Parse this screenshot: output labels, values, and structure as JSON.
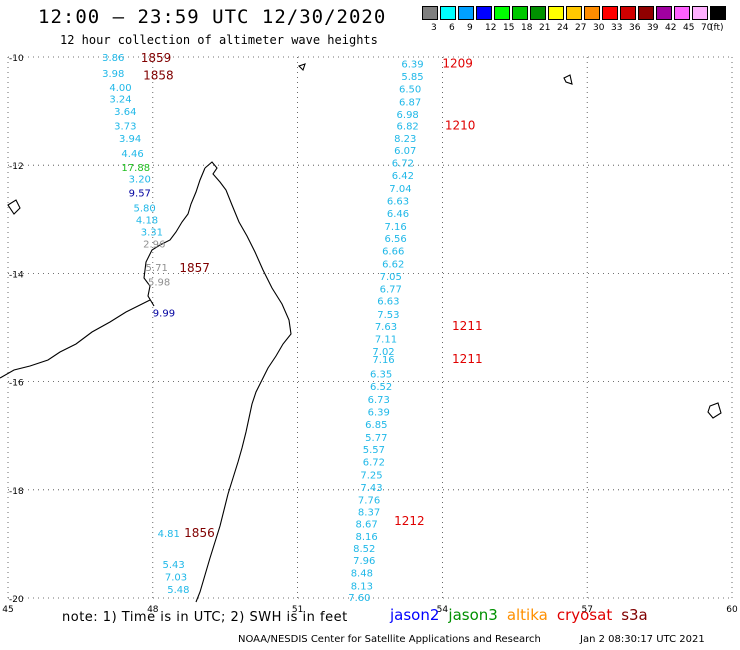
{
  "header": {
    "title": "12:00 – 23:59 UTC 12/30/2020",
    "subtitle": "12 hour collection of altimeter wave heights"
  },
  "legend": {
    "unit": "(ft)",
    "bins": [
      {
        "label": "3",
        "color": "#7f7f7f"
      },
      {
        "label": "6",
        "color": "#00ffff"
      },
      {
        "label": "9",
        "color": "#00a0ff"
      },
      {
        "label": "12",
        "color": "#0000ff"
      },
      {
        "label": "15",
        "color": "#00ff00"
      },
      {
        "label": "18",
        "color": "#00c800"
      },
      {
        "label": "21",
        "color": "#009000"
      },
      {
        "label": "24",
        "color": "#ffff00"
      },
      {
        "label": "27",
        "color": "#ffc800"
      },
      {
        "label": "30",
        "color": "#ff8c00"
      },
      {
        "label": "33",
        "color": "#ff0000"
      },
      {
        "label": "36",
        "color": "#d00000"
      },
      {
        "label": "39",
        "color": "#900000"
      },
      {
        "label": "42",
        "color": "#a000a0"
      },
      {
        "label": "45",
        "color": "#ff60ff"
      },
      {
        "label": "70",
        "color": "#ffb0ff"
      },
      {
        "label": "",
        "color": "#000000"
      }
    ]
  },
  "axes": {
    "lon_ticks": [
      45,
      48,
      51,
      54,
      57,
      60
    ],
    "lat_ticks": [
      -10,
      -12,
      -14,
      -16,
      -18,
      -20
    ],
    "lon_range": [
      45,
      60
    ],
    "lat_range": [
      -20,
      -10
    ]
  },
  "colors": {
    "cyan": "#20b8e8",
    "green": "#20c020",
    "navy": "#0000a0",
    "gray": "#909090",
    "maroon": "#800000",
    "red": "#e00000"
  },
  "time_labels": [
    {
      "text": "1859",
      "lon": 47.75,
      "lat": -10.02,
      "color": "maroon"
    },
    {
      "text": "1858",
      "lon": 47.8,
      "lat": -10.34,
      "color": "maroon"
    },
    {
      "text": "1857",
      "lon": 48.55,
      "lat": -13.9,
      "color": "maroon"
    },
    {
      "text": "1856",
      "lon": 48.65,
      "lat": -18.8,
      "color": "maroon"
    },
    {
      "text": "1209",
      "lon": 54.0,
      "lat": -10.12,
      "color": "red"
    },
    {
      "text": "1210",
      "lon": 54.05,
      "lat": -11.27,
      "color": "red"
    },
    {
      "text": "1211",
      "lon": 54.2,
      "lat": -14.97,
      "color": "red"
    },
    {
      "text": "1211",
      "lon": 54.2,
      "lat": -15.58,
      "color": "red"
    },
    {
      "text": "1212",
      "lon": 53.0,
      "lat": -18.58,
      "color": "red"
    }
  ],
  "track_west": [
    {
      "v": "3.86",
      "lon": 46.95,
      "lat": -10.0,
      "color": "cyan"
    },
    {
      "v": "3.98",
      "lon": 46.95,
      "lat": -10.3,
      "color": "cyan"
    },
    {
      "v": "4.00",
      "lon": 47.1,
      "lat": -10.55,
      "color": "cyan"
    },
    {
      "v": "3.24",
      "lon": 47.1,
      "lat": -10.77,
      "color": "cyan"
    },
    {
      "v": "3.64",
      "lon": 47.2,
      "lat": -11.0,
      "color": "cyan"
    },
    {
      "v": "3.73",
      "lon": 47.2,
      "lat": -11.27,
      "color": "cyan"
    },
    {
      "v": "3.94",
      "lon": 47.3,
      "lat": -11.5,
      "color": "cyan"
    },
    {
      "v": "4.46",
      "lon": 47.35,
      "lat": -11.77,
      "color": "cyan"
    },
    {
      "v": "17.88",
      "lon": 47.35,
      "lat": -12.03,
      "color": "green"
    },
    {
      "v": "3.20",
      "lon": 47.5,
      "lat": -12.25,
      "color": "cyan"
    },
    {
      "v": "9.57",
      "lon": 47.5,
      "lat": -12.5,
      "color": "navy"
    },
    {
      "v": "5.80",
      "lon": 47.6,
      "lat": -12.78,
      "color": "cyan"
    },
    {
      "v": "4.18",
      "lon": 47.65,
      "lat": -13.0,
      "color": "cyan"
    },
    {
      "v": "3.31",
      "lon": 47.75,
      "lat": -13.23,
      "color": "cyan"
    },
    {
      "v": "2.96",
      "lon": 47.8,
      "lat": -13.45,
      "color": "gray"
    },
    {
      "v": "5.71",
      "lon": 47.85,
      "lat": -13.88,
      "color": "gray"
    },
    {
      "v": "5.98",
      "lon": 47.9,
      "lat": -14.15,
      "color": "gray"
    },
    {
      "v": "9.99",
      "lon": 48.0,
      "lat": -14.72,
      "color": "navy"
    },
    {
      "v": "4.81",
      "lon": 48.1,
      "lat": -18.8,
      "color": "cyan"
    },
    {
      "v": "5.43",
      "lon": 48.2,
      "lat": -19.37,
      "color": "cyan"
    },
    {
      "v": "7.03",
      "lon": 48.25,
      "lat": -19.6,
      "color": "cyan"
    },
    {
      "v": "5.48",
      "lon": 48.3,
      "lat": -19.83,
      "color": "cyan"
    }
  ],
  "track_east": [
    {
      "v": "6.39",
      "lon": 53.15,
      "lat": -10.12
    },
    {
      "v": "5.85",
      "lon": 53.15,
      "lat": -10.35
    },
    {
      "v": "6.50",
      "lon": 53.1,
      "lat": -10.58
    },
    {
      "v": "6.87",
      "lon": 53.1,
      "lat": -10.82
    },
    {
      "v": "6.98",
      "lon": 53.05,
      "lat": -11.05
    },
    {
      "v": "6.82",
      "lon": 53.05,
      "lat": -11.27
    },
    {
      "v": "8.23",
      "lon": 53.0,
      "lat": -11.5
    },
    {
      "v": "6.07",
      "lon": 53.0,
      "lat": -11.72
    },
    {
      "v": "6.72",
      "lon": 52.95,
      "lat": -11.95
    },
    {
      "v": "6.42",
      "lon": 52.95,
      "lat": -12.18
    },
    {
      "v": "7.04",
      "lon": 52.9,
      "lat": -12.42
    },
    {
      "v": "6.63",
      "lon": 52.85,
      "lat": -12.65
    },
    {
      "v": "6.46",
      "lon": 52.85,
      "lat": -12.88
    },
    {
      "v": "7.16",
      "lon": 52.8,
      "lat": -13.12
    },
    {
      "v": "6.56",
      "lon": 52.8,
      "lat": -13.35
    },
    {
      "v": "6.66",
      "lon": 52.75,
      "lat": -13.58
    },
    {
      "v": "6.62",
      "lon": 52.75,
      "lat": -13.82
    },
    {
      "v": "7.05",
      "lon": 52.7,
      "lat": -14.05
    },
    {
      "v": "6.77",
      "lon": 52.7,
      "lat": -14.28
    },
    {
      "v": "6.63",
      "lon": 52.65,
      "lat": -14.5
    },
    {
      "v": "7.53",
      "lon": 52.65,
      "lat": -14.75
    },
    {
      "v": "7.63",
      "lon": 52.6,
      "lat": -14.97
    },
    {
      "v": "7.11",
      "lon": 52.6,
      "lat": -15.2
    },
    {
      "v": "7.02",
      "lon": 52.55,
      "lat": -15.43
    },
    {
      "v": "7.16",
      "lon": 52.55,
      "lat": -15.58
    },
    {
      "v": "6.35",
      "lon": 52.5,
      "lat": -15.85
    },
    {
      "v": "6.52",
      "lon": 52.5,
      "lat": -16.08
    },
    {
      "v": "6.73",
      "lon": 52.45,
      "lat": -16.32
    },
    {
      "v": "6.39",
      "lon": 52.45,
      "lat": -16.55
    },
    {
      "v": "6.85",
      "lon": 52.4,
      "lat": -16.78
    },
    {
      "v": "5.77",
      "lon": 52.4,
      "lat": -17.02
    },
    {
      "v": "5.57",
      "lon": 52.35,
      "lat": -17.25
    },
    {
      "v": "6.72",
      "lon": 52.35,
      "lat": -17.48
    },
    {
      "v": "7.25",
      "lon": 52.3,
      "lat": -17.72
    },
    {
      "v": "7.43",
      "lon": 52.3,
      "lat": -17.95
    },
    {
      "v": "7.76",
      "lon": 52.25,
      "lat": -18.18
    },
    {
      "v": "8.37",
      "lon": 52.25,
      "lat": -18.4
    },
    {
      "v": "8.67",
      "lon": 52.2,
      "lat": -18.62
    },
    {
      "v": "8.16",
      "lon": 52.2,
      "lat": -18.85
    },
    {
      "v": "8.52",
      "lon": 52.15,
      "lat": -19.08
    },
    {
      "v": "7.96",
      "lon": 52.15,
      "lat": -19.3
    },
    {
      "v": "8.48",
      "lon": 52.1,
      "lat": -19.53
    },
    {
      "v": "8.13",
      "lon": 52.1,
      "lat": -19.77
    },
    {
      "v": "7.60",
      "lon": 52.05,
      "lat": -19.98
    }
  ],
  "footer": {
    "note": "note: 1) Time is in UTC; 2) SWH is in feet",
    "satellites": [
      {
        "name": "jason2",
        "color": "#0000ff"
      },
      {
        "name": "jason3",
        "color": "#009000"
      },
      {
        "name": "altika",
        "color": "#ff9000"
      },
      {
        "name": "cryosat",
        "color": "#e00000"
      },
      {
        "name": "s3a",
        "color": "#800000"
      }
    ],
    "credit": "NOAA/NESDIS Center for Satellite Applications and Research",
    "timestamp": "Jan  2 08:30:17 UTC 2021"
  }
}
